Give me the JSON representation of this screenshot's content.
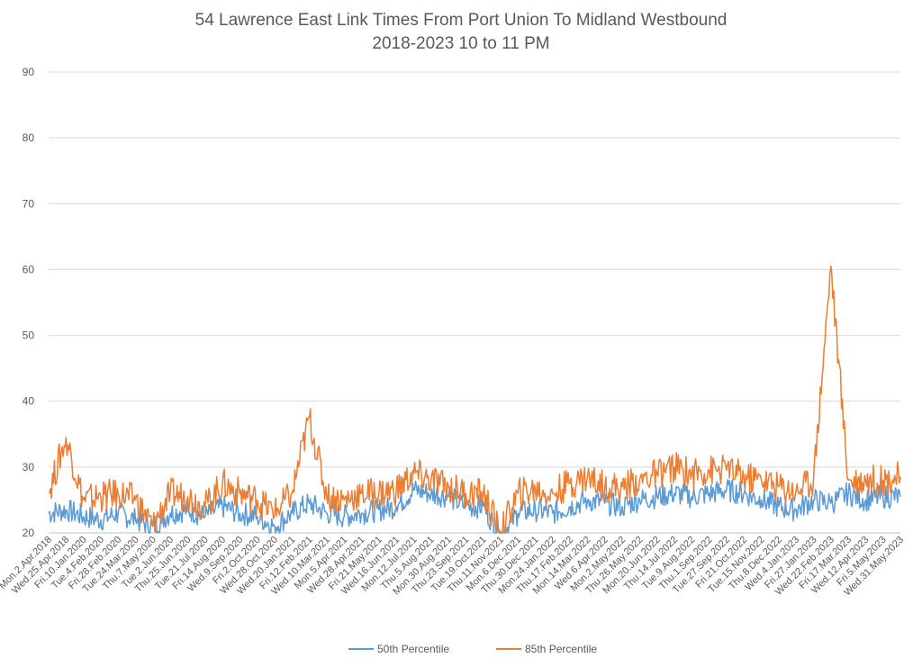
{
  "chart_data": {
    "type": "line",
    "title_line1": "54 Lawrence East Link Times From Port Union To Midland Westbound",
    "title_line2": "2018-2023 10 to 11 PM",
    "xlabel": "",
    "ylabel": "",
    "ylim": [
      20,
      90
    ],
    "yticks": [
      "20",
      "30",
      "40",
      "50",
      "60",
      "70",
      "80",
      "90"
    ],
    "grid": "horizontal",
    "legend_position": "bottom",
    "categories": [
      "Mon.2.Apr.2018",
      "Wed.25.Apr.2018",
      "Fri.10.Jan.2020",
      "Tue.4.Feb.2020",
      "Fri.28.Feb.2020",
      "Tue.24.Mar.2020",
      "Thu.7.May.2020",
      "Tue.2.Jun.2020",
      "Thu.25.Jun.2020",
      "Tue.21.Jul.2020",
      "Fri.14.Aug.2020",
      "Wed.9.Sep.2020",
      "Fri.2.Oct.2020",
      "Wed.28.Oct.2020",
      "Wed.20.Jan.2021",
      "Fri.12.Feb.2021",
      "Wed.10.Mar.2021",
      "Mon.5.Apr.2021",
      "Wed.28.Apr.2021",
      "Fri.21.May.2021",
      "Wed.16.Jun.2021",
      "Mon.12.Jul.2021",
      "Thu.5.Aug.2021",
      "Mon.30.Aug.2021",
      "Thu.23.Sep.2021",
      "Tue.19.Oct.2021",
      "Thu.11.Nov.2021",
      "Mon.6.Dec.2021",
      "Thu.30.Dec.2021",
      "Mon.24.Jan.2022",
      "Thu.17.Feb.2022",
      "Mon.14.Mar.2022",
      "Wed.6.Apr.2022",
      "Mon.2.May.2022",
      "Thu.26.May.2022",
      "Mon.20.Jun.2022",
      "Thu.14.Jul.2022",
      "Tue.9.Aug.2022",
      "Thu.1.Sep.2022",
      "Tue.27.Sep.2022",
      "Fri.21.Oct.2022",
      "Tue.15.Nov.2022",
      "Thu.8.Dec.2022",
      "Wed.4.Jan.2023",
      "Fri.27.Jan.2023",
      "Wed.22.Feb.2023",
      "Fri.17.Mar.2023",
      "Wed.12.Apr.2023",
      "Fri.5.May.2023",
      "Wed.31.May.2023"
    ],
    "series": [
      {
        "name": "50th Percentile",
        "color": "#5B9BD5",
        "values": [
          23,
          23.5,
          22.5,
          22,
          23,
          22,
          21,
          23,
          23.5,
          22.5,
          24,
          23,
          22.5,
          21,
          23,
          24.5,
          23,
          22.5,
          23,
          23.5,
          24,
          26.5,
          26,
          25.5,
          24,
          24,
          19.5,
          23,
          23.5,
          23,
          24,
          25,
          24.5,
          24,
          25,
          25.5,
          26,
          25.5,
          26,
          26.5,
          26,
          25,
          24,
          23.5,
          25,
          24.5,
          26,
          25,
          25.5,
          25.5
        ]
      },
      {
        "name": "85th Percentile",
        "color": "#ED7D31",
        "values": [
          26,
          34.5,
          25,
          25.5,
          26,
          25,
          21,
          26,
          25.5,
          24,
          27.5,
          26,
          25,
          23,
          26,
          37.5,
          25.5,
          25,
          26,
          26,
          26.5,
          29,
          28,
          27,
          26,
          26,
          20,
          26,
          26.5,
          26,
          27.5,
          28.5,
          27,
          27,
          28,
          29,
          30,
          29,
          29.5,
          29.5,
          28.5,
          28,
          27,
          26.5,
          28,
          60.5,
          28,
          28,
          28,
          28.5
        ]
      }
    ]
  }
}
